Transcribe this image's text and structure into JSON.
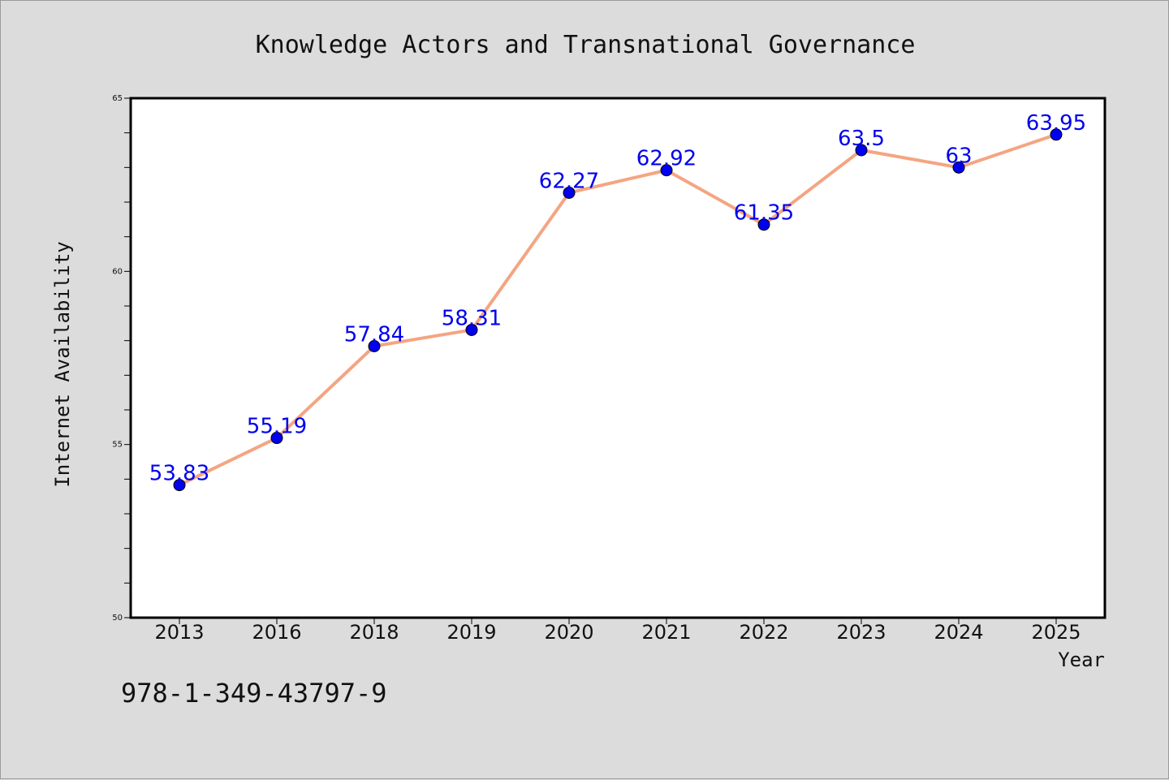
{
  "chart_data": {
    "type": "line",
    "title": "Knowledge Actors and Transnational Governance",
    "xlabel": "Year",
    "ylabel": "Internet Availability",
    "categories": [
      "2013",
      "2016",
      "2018",
      "2019",
      "2020",
      "2021",
      "2022",
      "2023",
      "2024",
      "2025"
    ],
    "series": [
      {
        "values": [
          53.83,
          55.19,
          57.84,
          58.31,
          62.27,
          62.92,
          61.35,
          63.5,
          63,
          63.95
        ],
        "labels": [
          "53.83",
          "55.19",
          "57.84",
          "58.31",
          "62.27",
          "62.92",
          "61.35",
          "63.5",
          "63",
          "63.95"
        ],
        "line_color": "#f4a582",
        "marker_color": "#0000ee"
      }
    ],
    "ylim": [
      50,
      65
    ],
    "yticks": [
      "50",
      "55",
      "60",
      "65"
    ],
    "grid": false,
    "legend": "none"
  },
  "footer": {
    "isbn": "978-1-349-43797-9"
  }
}
